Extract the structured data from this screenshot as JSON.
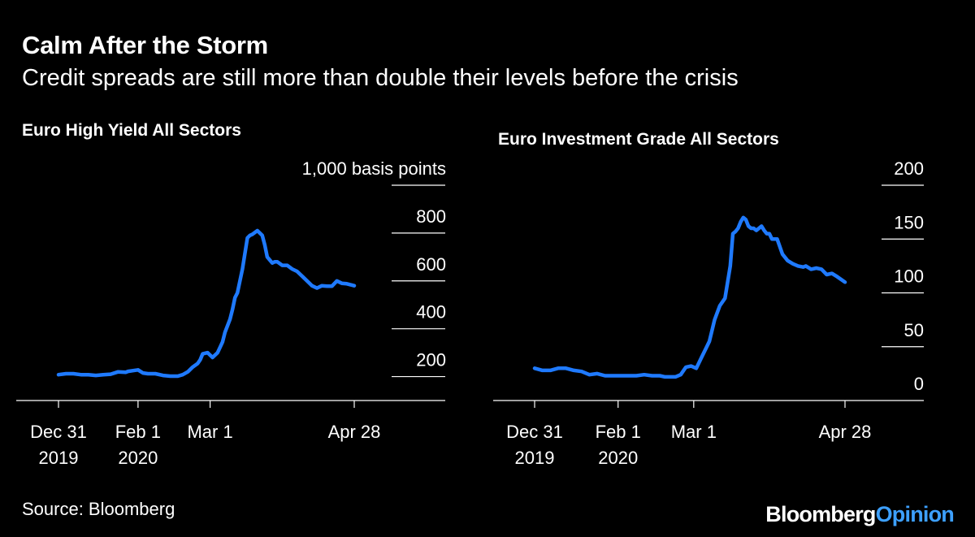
{
  "header": {
    "title": "Calm After the Storm",
    "subtitle": "Credit spreads are still more than double their levels before the crisis"
  },
  "footer": {
    "source": "Source: Bloomberg",
    "brand_primary": "Bloomberg",
    "brand_secondary": "Opinion"
  },
  "colors": {
    "background": "#000000",
    "line": "#1f7aff",
    "axis": "#ffffff",
    "brand_accent": "#3da0ff"
  },
  "chart_data": [
    {
      "type": "line",
      "title": "Euro High Yield All Sectors",
      "ylabel": "basis points",
      "ylim": [
        100,
        1000
      ],
      "yticks": [
        200,
        400,
        600,
        800,
        1000
      ],
      "ytick_labels": [
        "200",
        "400",
        "600",
        "800",
        "1,000 basis points"
      ],
      "xlim": [
        0,
        119
      ],
      "xticks": [
        {
          "x": 0,
          "label_top": "Dec 31",
          "label_bottom": "2019"
        },
        {
          "x": 32,
          "label_top": "Feb 1",
          "label_bottom": "2020"
        },
        {
          "x": 61,
          "label_top": "Mar 1",
          "label_bottom": ""
        },
        {
          "x": 119,
          "label_top": "Apr 28",
          "label_bottom": ""
        }
      ],
      "series": [
        {
          "name": "Euro High Yield All Sectors",
          "x": [
            0,
            3,
            6,
            9,
            12,
            15,
            18,
            21,
            24,
            27,
            28,
            30,
            32,
            34,
            36,
            39,
            42,
            45,
            48,
            50,
            52,
            54,
            56,
            57,
            58,
            60,
            61,
            62,
            64,
            66,
            67,
            69,
            70,
            71,
            72,
            73,
            74,
            76,
            77,
            78,
            80,
            82,
            83,
            84,
            86,
            87,
            88,
            90,
            92,
            94,
            96,
            98,
            100,
            102,
            104,
            106,
            108,
            110,
            112,
            114,
            116,
            119
          ],
          "values": [
            208,
            212,
            212,
            208,
            208,
            205,
            208,
            210,
            220,
            218,
            222,
            225,
            228,
            215,
            212,
            212,
            205,
            202,
            202,
            208,
            220,
            240,
            255,
            270,
            295,
            300,
            290,
            280,
            300,
            345,
            385,
            440,
            480,
            530,
            550,
            600,
            650,
            780,
            790,
            795,
            810,
            790,
            750,
            700,
            675,
            680,
            680,
            665,
            665,
            650,
            640,
            620,
            600,
            580,
            570,
            580,
            578,
            578,
            600,
            590,
            588,
            580
          ]
        }
      ]
    },
    {
      "type": "line",
      "title": "Euro Investment Grade All Sectors",
      "ylabel": "",
      "ylim": [
        0,
        200
      ],
      "yticks": [
        0,
        50,
        100,
        150,
        200
      ],
      "ytick_labels": [
        "0",
        "50",
        "100",
        "150",
        "200"
      ],
      "xlim": [
        0,
        119
      ],
      "xticks": [
        {
          "x": 0,
          "label_top": "Dec 31",
          "label_bottom": "2019"
        },
        {
          "x": 32,
          "label_top": "Feb 1",
          "label_bottom": "2020"
        },
        {
          "x": 61,
          "label_top": "Mar 1",
          "label_bottom": ""
        },
        {
          "x": 119,
          "label_top": "Apr 28",
          "label_bottom": ""
        }
      ],
      "series": [
        {
          "name": "Euro Investment Grade All Sectors",
          "x": [
            0,
            3,
            6,
            9,
            12,
            15,
            18,
            21,
            24,
            27,
            30,
            33,
            36,
            39,
            42,
            45,
            48,
            50,
            52,
            54,
            56,
            58,
            60,
            61,
            62,
            64,
            66,
            67,
            69,
            71,
            73,
            75,
            76,
            77,
            78,
            79,
            80,
            81,
            82,
            83,
            84,
            85,
            86,
            87,
            88,
            89,
            90,
            91,
            93,
            95,
            97,
            99,
            101,
            103,
            104,
            106,
            108,
            110,
            112,
            114,
            116,
            119
          ],
          "values": [
            30,
            28,
            28,
            30,
            30,
            28,
            27,
            24,
            25,
            23,
            23,
            23,
            23,
            23,
            24,
            23,
            23,
            22,
            22,
            22,
            24,
            31,
            32,
            31,
            30,
            40,
            50,
            55,
            75,
            88,
            95,
            125,
            155,
            157,
            160,
            166,
            170,
            168,
            162,
            160,
            160,
            158,
            160,
            162,
            158,
            155,
            155,
            150,
            150,
            136,
            130,
            127,
            125,
            124,
            125,
            122,
            123,
            122,
            117,
            118,
            115,
            110
          ]
        }
      ]
    }
  ]
}
